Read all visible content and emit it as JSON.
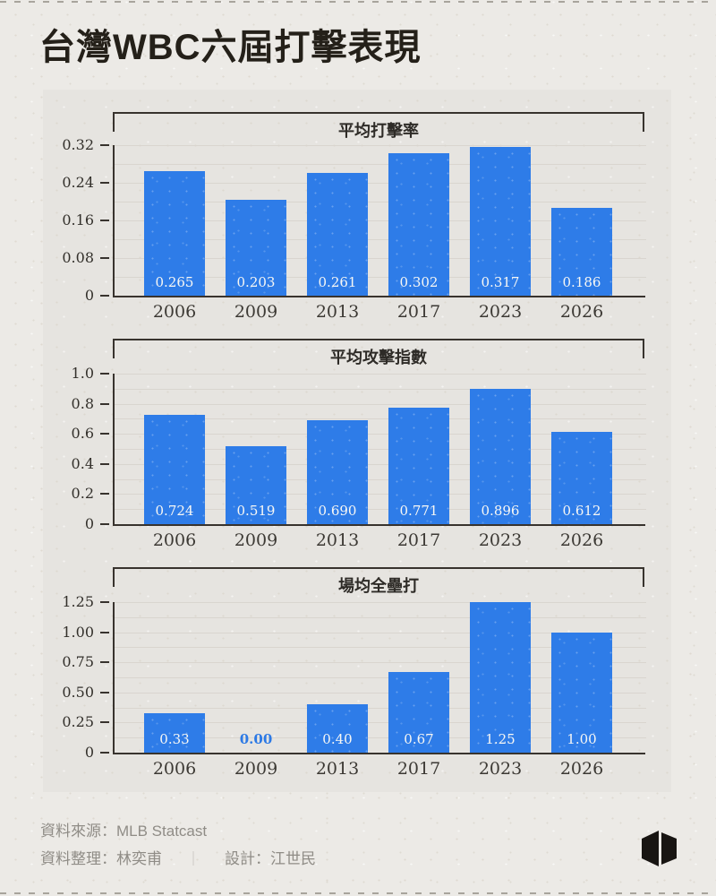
{
  "page": {
    "title": "台灣WBC六屆打擊表現"
  },
  "chart_data": [
    {
      "type": "bar",
      "title": "平均打擊率",
      "categories": [
        "2006",
        "2009",
        "2013",
        "2017",
        "2023",
        "2026"
      ],
      "values": [
        0.265,
        0.203,
        0.261,
        0.302,
        0.317,
        0.186
      ],
      "value_labels": [
        "0.265",
        "0.203",
        "0.261",
        "0.302",
        "0.317",
        "0.186"
      ],
      "ylim": [
        0,
        0.32
      ],
      "yticks": [
        0,
        0.08,
        0.16,
        0.24,
        0.32
      ],
      "ytick_labels": [
        "0",
        "0.08",
        "0.16",
        "0.24",
        "0.32"
      ],
      "grid": "horizontal, minor lines at half tick interval",
      "legend": "none"
    },
    {
      "type": "bar",
      "title": "平均攻擊指數",
      "categories": [
        "2006",
        "2009",
        "2013",
        "2017",
        "2023",
        "2026"
      ],
      "values": [
        0.724,
        0.519,
        0.69,
        0.771,
        0.896,
        0.612
      ],
      "value_labels": [
        "0.724",
        "0.519",
        "0.690",
        "0.771",
        "0.896",
        "0.612"
      ],
      "ylim": [
        0,
        1.0
      ],
      "yticks": [
        0,
        0.2,
        0.4,
        0.6,
        0.8,
        1.0
      ],
      "ytick_labels": [
        "0",
        "0.2",
        "0.4",
        "0.6",
        "0.8",
        "1.0"
      ],
      "grid": "horizontal, minor lines at half tick interval",
      "legend": "none"
    },
    {
      "type": "bar",
      "title": "場均全壘打",
      "categories": [
        "2006",
        "2009",
        "2013",
        "2017",
        "2023",
        "2026"
      ],
      "values": [
        0.33,
        0.0,
        0.4,
        0.67,
        1.25,
        1.0
      ],
      "value_labels": [
        "0.33",
        "0.00",
        "0.40",
        "0.67",
        "1.25",
        "1.00"
      ],
      "ylim": [
        0,
        1.25
      ],
      "yticks": [
        0,
        0.25,
        0.5,
        0.75,
        1.0,
        1.25
      ],
      "ytick_labels": [
        "0",
        "0.25",
        "0.50",
        "0.75",
        "1.00",
        "1.25"
      ],
      "grid": "horizontal, minor lines at half tick interval",
      "legend": "none"
    }
  ],
  "footer": {
    "source": "資料來源：MLB Statcast",
    "credit": "資料整理：林奕甫",
    "separator": "｜",
    "design": "設計：江世民"
  },
  "colors": {
    "page_bg": "#ECEAE6",
    "panel_bg": "#E6E4E0",
    "bar_blue": "#2E7CE8",
    "accent_blue": "#2C79E5",
    "axis_dark": "#38332E",
    "gridline": "#D9D5CF",
    "tick_text": "#33302B",
    "year_text": "#3C3934",
    "footer_text": "#8F8C86",
    "separator_text": "#C1BEB8",
    "white_value_label": "#F7F7F4",
    "logo_black": "#181512"
  }
}
